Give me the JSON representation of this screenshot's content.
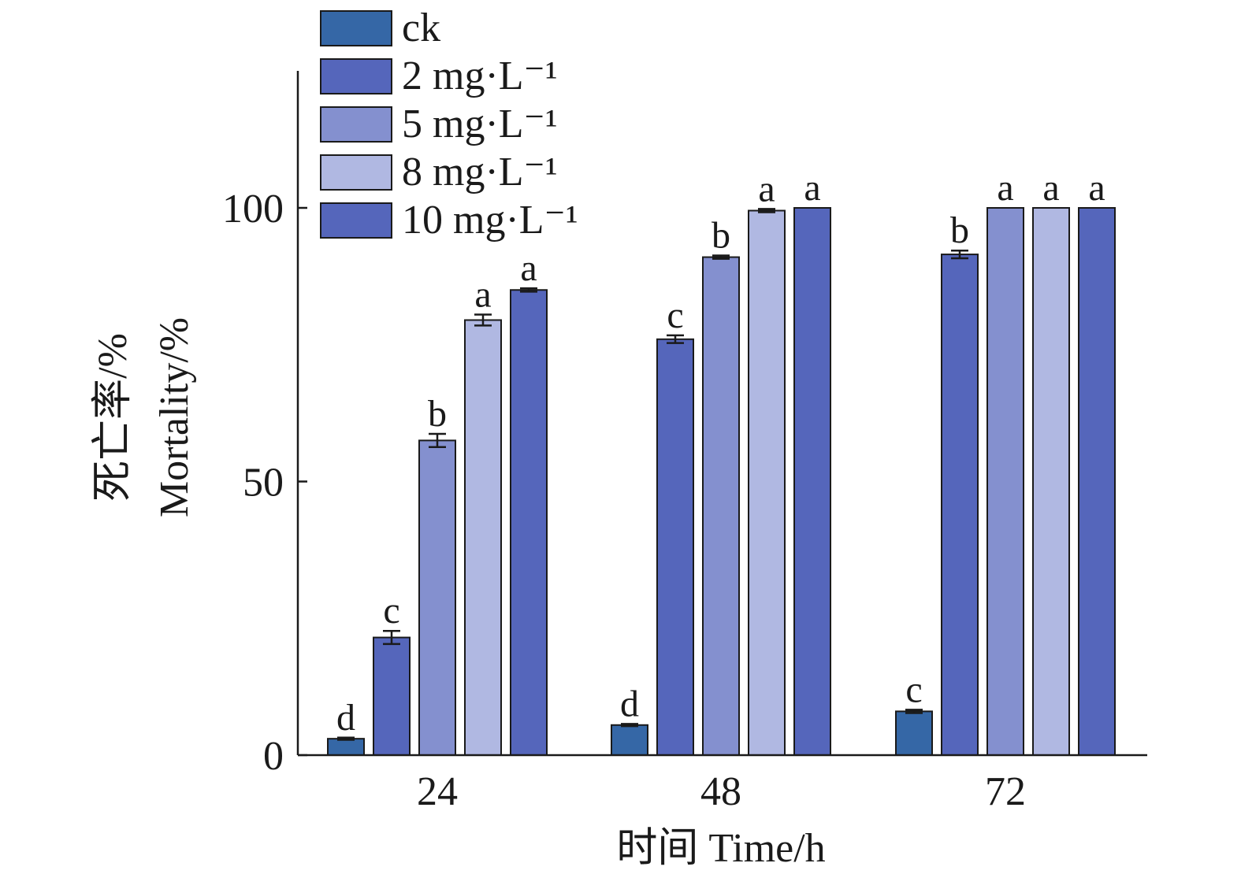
{
  "chart_data": {
    "type": "bar",
    "xlabel": "时间 Time/h",
    "ylabel": [
      "死亡率/%",
      "Mortality/%"
    ],
    "categories": [
      "24",
      "48",
      "72"
    ],
    "ylim": [
      0,
      120
    ],
    "yticks": [
      0,
      50,
      100
    ],
    "legend_position": "top-left",
    "grid": false,
    "series": [
      {
        "name": "ck",
        "color": "#3567a6",
        "values": [
          3,
          5.5,
          8
        ],
        "errors": [
          0.2,
          0.2,
          0.3
        ],
        "letters": [
          "d",
          "d",
          "c"
        ]
      },
      {
        "name": "2 mg·L⁻¹",
        "color": "#5566bb",
        "values": [
          21.5,
          76,
          91.5
        ],
        "errors": [
          1.2,
          0.7,
          0.7
        ],
        "letters": [
          "c",
          "c",
          "b"
        ]
      },
      {
        "name": "5 mg·L⁻¹",
        "color": "#8490cf",
        "values": [
          57.5,
          91,
          100
        ],
        "errors": [
          1.2,
          0.3,
          0
        ],
        "letters": [
          "b",
          "b",
          "a"
        ]
      },
      {
        "name": "8 mg·L⁻¹",
        "color": "#b0b8e2",
        "values": [
          79.5,
          99.5,
          100
        ],
        "errors": [
          1,
          0.3,
          0
        ],
        "letters": [
          "a",
          "a",
          "a"
        ]
      },
      {
        "name": "10 mg·L⁻¹",
        "color": "#5566bb",
        "values": [
          85,
          100,
          100
        ],
        "errors": [
          0.3,
          0,
          0
        ],
        "letters": [
          "a",
          "a",
          "a"
        ]
      }
    ]
  }
}
